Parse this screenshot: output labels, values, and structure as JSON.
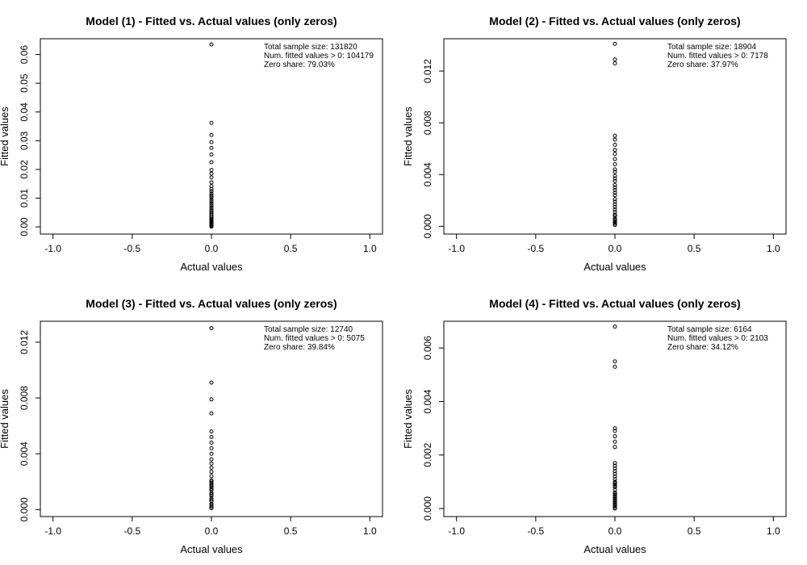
{
  "chart_data": [
    {
      "type": "scatter",
      "title": "Model (1) - Fitted vs. Actual values (only zeros)",
      "xlabel": "Actual values",
      "ylabel": "Fitted values",
      "xlim": [
        -1.08,
        1.08
      ],
      "ylim": [
        -0.0025,
        0.0655
      ],
      "xticks": [
        "-1.0",
        "-0.5",
        "0.0",
        "0.5",
        "1.0"
      ],
      "yticks": [
        "0.00",
        "0.01",
        "0.02",
        "0.03",
        "0.04",
        "0.05",
        "0.06"
      ],
      "annotations": [
        "Total sample size: 131820",
        "Num. fitted values > 0: 104179",
        "Zero share: 79.03%"
      ],
      "x": [
        0,
        0,
        0,
        0,
        0,
        0,
        0,
        0,
        0,
        0,
        0,
        0,
        0,
        0,
        0,
        0,
        0,
        0,
        0,
        0,
        0,
        0,
        0,
        0,
        0,
        0,
        0,
        0,
        0,
        0,
        0,
        0,
        0,
        0,
        0,
        0,
        0,
        0,
        0
      ],
      "y": [
        0.0635,
        0.0362,
        0.032,
        0.0295,
        0.0275,
        0.0252,
        0.0225,
        0.0198,
        0.0185,
        0.0172,
        0.0155,
        0.0142,
        0.0132,
        0.0124,
        0.0116,
        0.0109,
        0.0102,
        0.0095,
        0.0088,
        0.0081,
        0.0074,
        0.0067,
        0.006,
        0.0054,
        0.0048,
        0.0042,
        0.0037,
        0.0032,
        0.0027,
        0.0023,
        0.0019,
        0.0016,
        0.0013,
        0.001,
        0.0008,
        0.0006,
        0.0004,
        0.0002,
        0.0001
      ]
    },
    {
      "type": "scatter",
      "title": "Model (2) - Fitted vs. Actual values (only zeros)",
      "xlabel": "Actual values",
      "ylabel": "Fitted values",
      "xlim": [
        -1.08,
        1.08
      ],
      "ylim": [
        -0.0006,
        0.0145
      ],
      "xticks": [
        "-1.0",
        "-0.5",
        "0.0",
        "0.5",
        "1.0"
      ],
      "yticks": [
        "0.000",
        "0.004",
        "0.008",
        "0.012"
      ],
      "annotations": [
        "Total sample size: 18904",
        "Num. fitted values > 0: 7178",
        "Zero share: 37.97%"
      ],
      "x": [
        0,
        0,
        0,
        0,
        0,
        0,
        0,
        0,
        0,
        0,
        0,
        0,
        0,
        0,
        0,
        0,
        0,
        0,
        0,
        0,
        0,
        0,
        0,
        0,
        0,
        0,
        0,
        0,
        0,
        0,
        0,
        0,
        0,
        0
      ],
      "y": [
        0.0141,
        0.0129,
        0.0126,
        0.007,
        0.0067,
        0.0063,
        0.0059,
        0.0056,
        0.0052,
        0.0048,
        0.0044,
        0.0042,
        0.0039,
        0.0037,
        0.0035,
        0.0032,
        0.003,
        0.0028,
        0.0026,
        0.0024,
        0.0021,
        0.0019,
        0.0017,
        0.0015,
        0.0013,
        0.0011,
        0.0009,
        0.0008,
        0.0006,
        0.0005,
        0.0004,
        0.0003,
        0.0002,
        0.0001
      ]
    },
    {
      "type": "scatter",
      "title": "Model (3) - Fitted vs. Actual values (only zeros)",
      "xlabel": "Actual values",
      "ylabel": "Fitted values",
      "xlim": [
        -1.08,
        1.08
      ],
      "ylim": [
        -0.0005,
        0.0135
      ],
      "xticks": [
        "-1.0",
        "-0.5",
        "0.0",
        "0.5",
        "1.0"
      ],
      "yticks": [
        "0.000",
        "0.004",
        "0.008",
        "0.012"
      ],
      "annotations": [
        "Total sample size: 12740",
        "Num. fitted values > 0: 5075",
        "Zero share: 39.84%"
      ],
      "x": [
        0,
        0,
        0,
        0,
        0,
        0,
        0,
        0,
        0,
        0,
        0,
        0,
        0,
        0,
        0,
        0,
        0,
        0,
        0,
        0,
        0,
        0,
        0,
        0,
        0,
        0,
        0,
        0,
        0,
        0,
        0,
        0
      ],
      "y": [
        0.013,
        0.0091,
        0.0079,
        0.0069,
        0.0056,
        0.0052,
        0.0048,
        0.0044,
        0.004,
        0.0036,
        0.0033,
        0.003,
        0.0027,
        0.0024,
        0.0021,
        0.002,
        0.0019,
        0.0018,
        0.0017,
        0.0016,
        0.0015,
        0.0014,
        0.0012,
        0.0011,
        0.001,
        0.0008,
        0.0007,
        0.0006,
        0.0004,
        0.0003,
        0.0002,
        0.0001
      ]
    },
    {
      "type": "scatter",
      "title": "Model (4) - Fitted vs. Actual values (only zeros)",
      "xlabel": "Actual values",
      "ylabel": "Fitted values",
      "xlim": [
        -1.08,
        1.08
      ],
      "ylim": [
        -0.0003,
        0.007
      ],
      "xticks": [
        "-1.0",
        "-0.5",
        "0.0",
        "0.5",
        "1.0"
      ],
      "yticks": [
        "0.000",
        "0.002",
        "0.004",
        "0.006"
      ],
      "annotations": [
        "Total sample size: 6164",
        "Num. fitted values > 0: 2103",
        "Zero share: 34.12%"
      ],
      "x": [
        0,
        0,
        0,
        0,
        0,
        0,
        0,
        0,
        0,
        0,
        0,
        0,
        0,
        0,
        0,
        0,
        0,
        0,
        0,
        0,
        0,
        0,
        0,
        0,
        0,
        0,
        0,
        0,
        0,
        0,
        0,
        0,
        0,
        0
      ],
      "y": [
        0.0068,
        0.0055,
        0.0053,
        0.003,
        0.0029,
        0.0027,
        0.0025,
        0.0023,
        0.0017,
        0.0016,
        0.0015,
        0.0014,
        0.0013,
        0.0012,
        0.0011,
        0.001,
        0.00095,
        0.0009,
        0.00085,
        0.0008,
        0.0007,
        0.0006,
        0.00055,
        0.0005,
        0.00045,
        0.0004,
        0.00035,
        0.0003,
        0.00025,
        0.0002,
        0.00015,
        0.0001,
        5e-05,
        0.0
      ]
    }
  ]
}
